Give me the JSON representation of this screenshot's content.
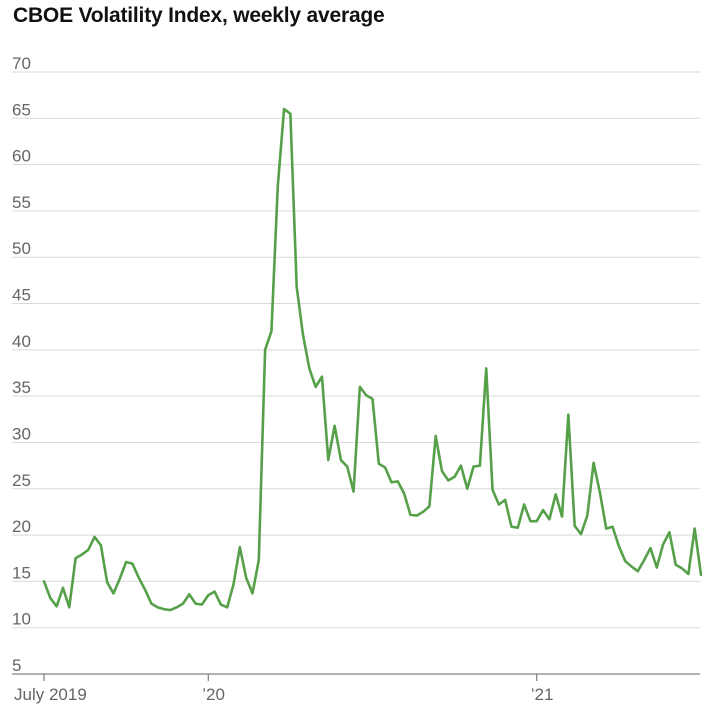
{
  "chart_data": {
    "type": "line",
    "title": "CBOE Volatility Index, weekly average",
    "xlabel": "",
    "ylabel": "",
    "ylim": [
      5,
      70
    ],
    "yticks": [
      5,
      10,
      15,
      20,
      25,
      30,
      35,
      40,
      45,
      50,
      55,
      60,
      65,
      70
    ],
    "grid": true,
    "line_color": "#56a04a",
    "x_tick_labels": [
      {
        "label": "July 2019",
        "week": 0
      },
      {
        "label": "’20",
        "week": 26
      },
      {
        "label": "’21",
        "week": 78
      }
    ],
    "series": [
      {
        "name": "CBOE Volatility Index, weekly average",
        "x_unit": "weeks since first week of July 2019",
        "values": [
          15.0,
          13.2,
          12.3,
          14.3,
          12.2,
          17.5,
          17.9,
          18.4,
          19.8,
          18.9,
          14.9,
          13.7,
          15.3,
          17.1,
          16.9,
          15.4,
          14.1,
          12.6,
          12.2,
          12.0,
          11.9,
          12.2,
          12.6,
          13.6,
          12.6,
          12.5,
          13.5,
          13.9,
          12.5,
          12.2,
          14.7,
          18.7,
          15.4,
          13.7,
          17.3,
          40.0,
          42.0,
          57.6,
          66.0,
          65.5,
          46.8,
          41.6,
          38.0,
          36.0,
          37.1,
          28.1,
          31.8,
          28.1,
          27.4,
          24.7,
          36.0,
          35.1,
          34.7,
          27.7,
          27.3,
          25.7,
          25.8,
          24.5,
          22.2,
          22.1,
          22.5,
          23.1,
          30.7,
          26.9,
          25.9,
          26.3,
          27.5,
          25.0,
          27.4,
          27.5,
          38.0,
          24.9,
          23.3,
          23.8,
          20.9,
          20.8,
          23.3,
          21.5,
          21.5,
          22.7,
          21.7,
          24.4,
          22.0,
          33.0,
          21.0,
          20.1,
          22.1,
          27.8,
          24.6,
          20.7,
          20.9,
          18.8,
          17.2,
          16.6,
          16.1,
          17.3,
          18.6,
          16.5,
          19.0,
          20.3,
          16.8,
          16.4,
          15.8,
          20.7,
          15.7
        ]
      }
    ]
  }
}
